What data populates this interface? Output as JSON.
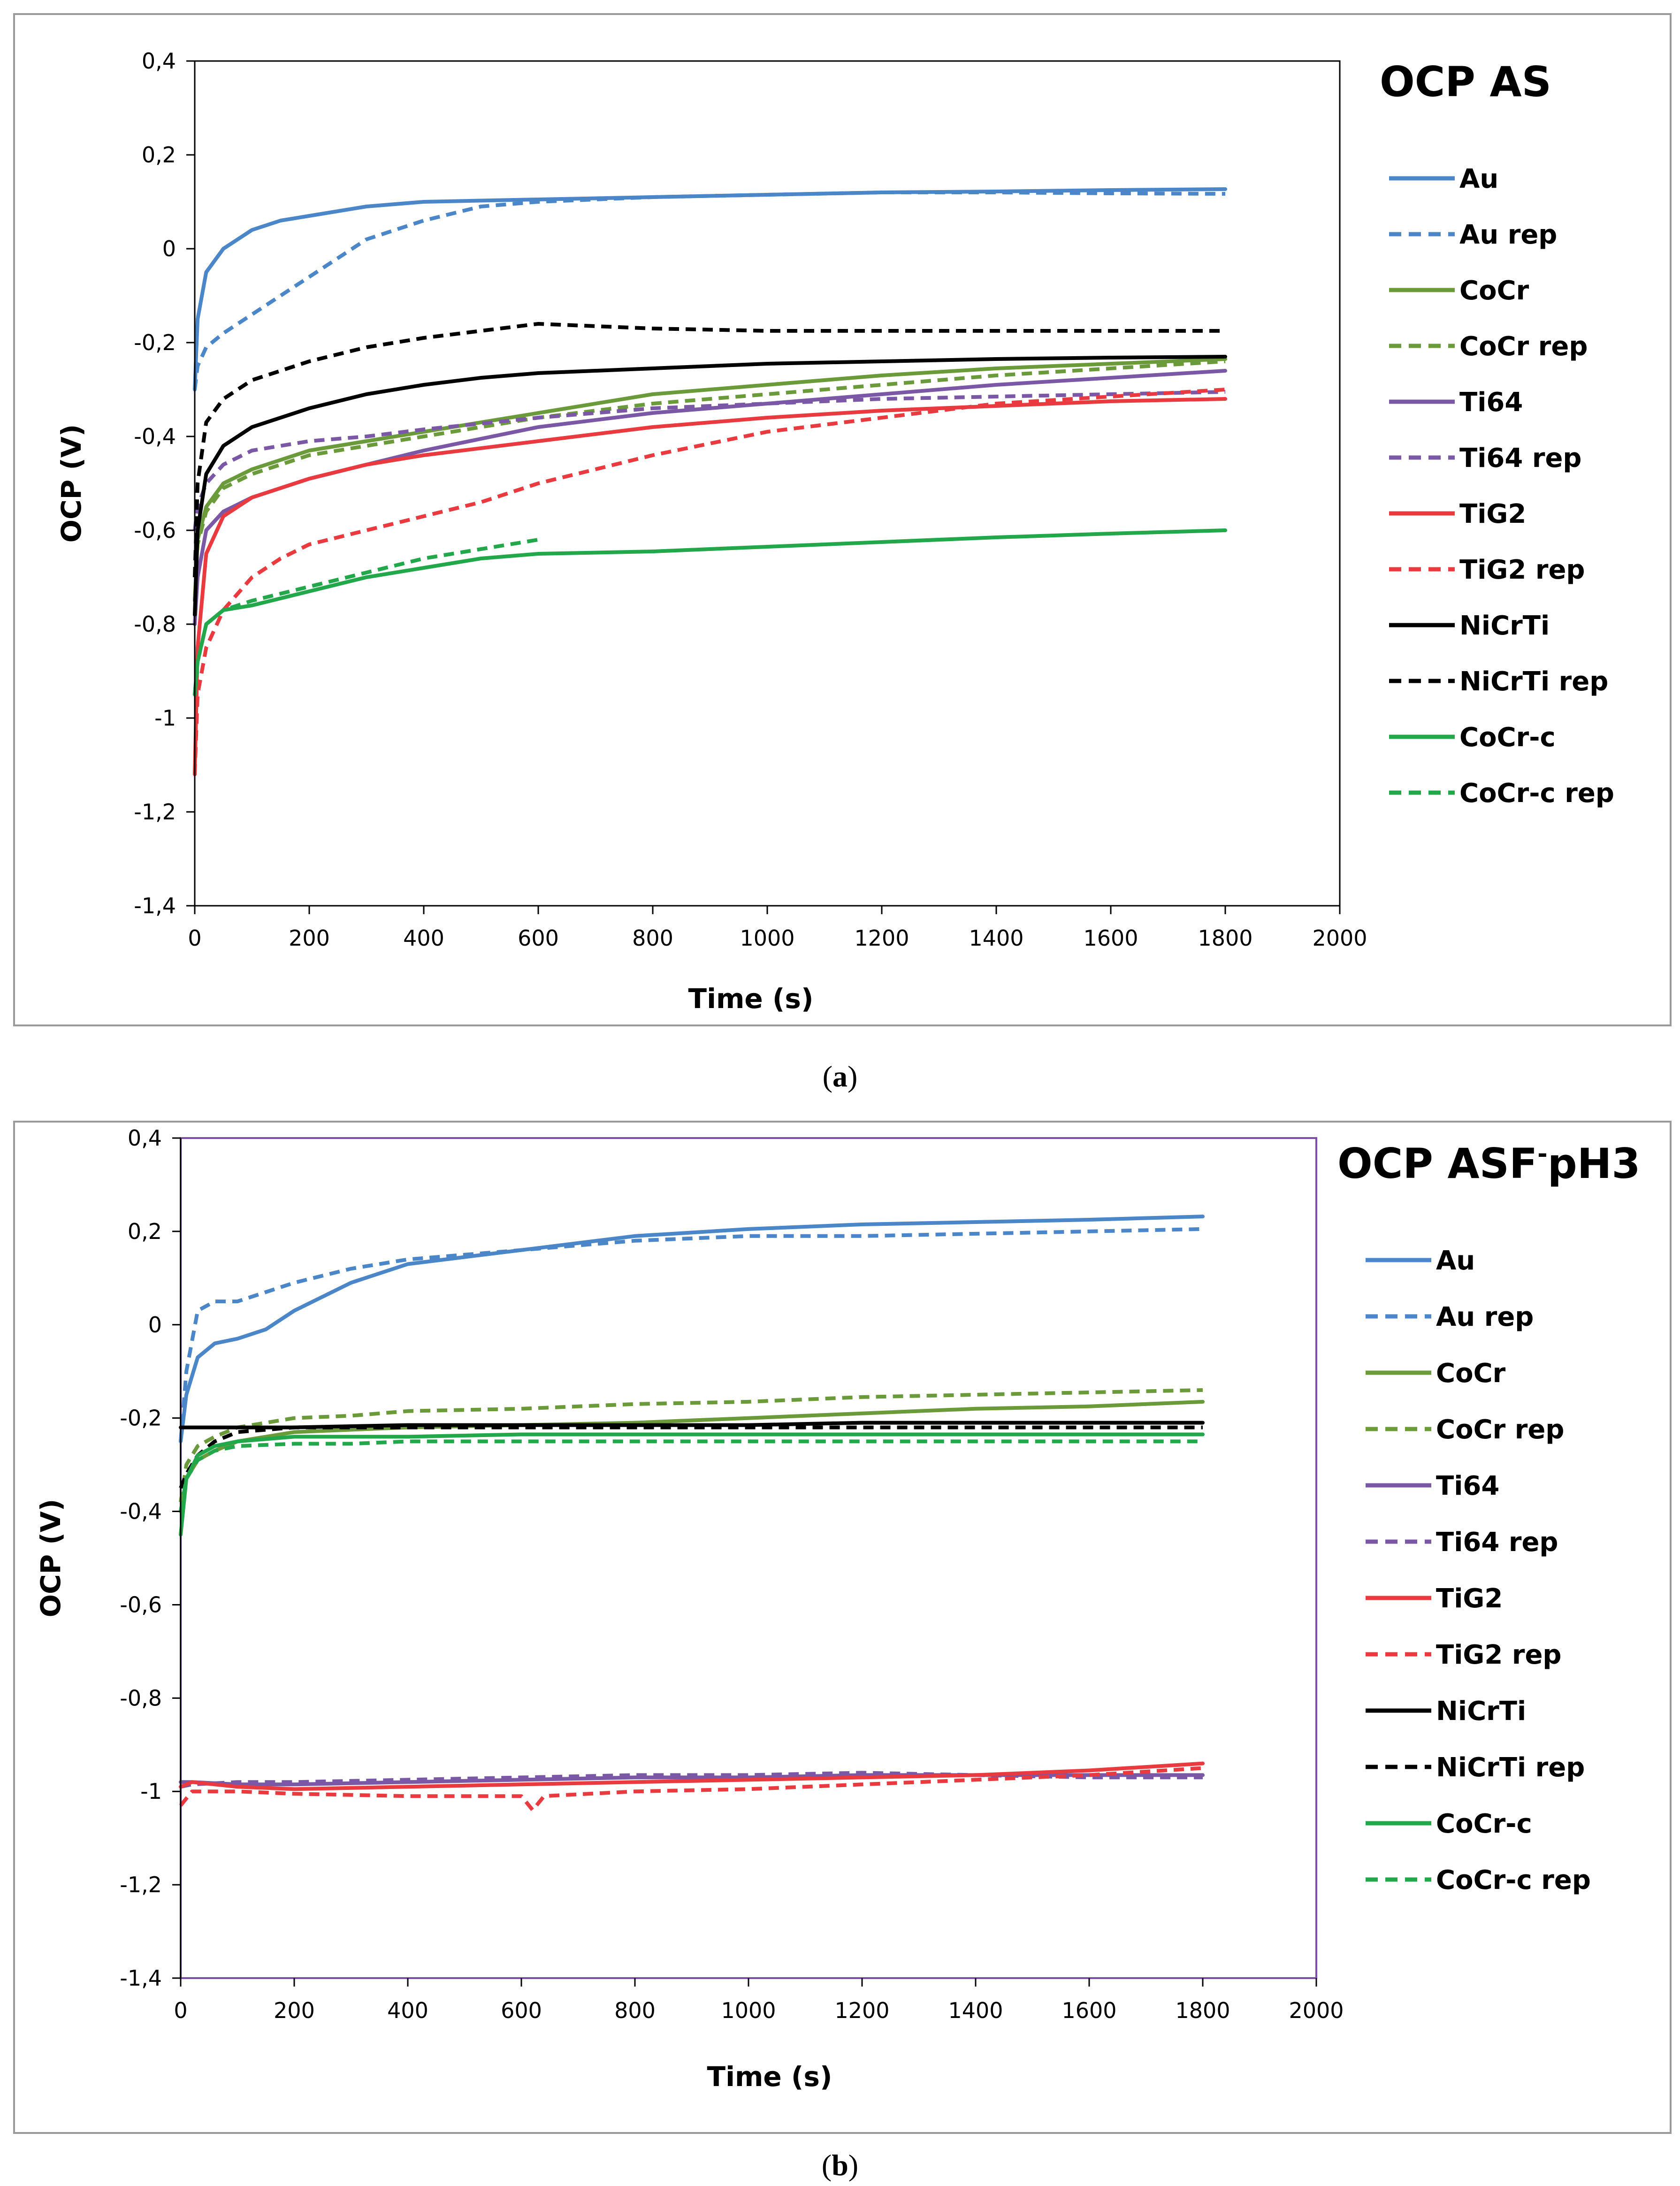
{
  "chart_data": [
    {
      "type": "line",
      "title": "OCP AS",
      "caption_letter": "a",
      "xlabel": "Time (s)",
      "ylabel": "OCP (V)",
      "xlim": [
        0,
        2000
      ],
      "ylim": [
        -1.4,
        0.4
      ],
      "x_ticks": [
        "0",
        "200",
        "400",
        "600",
        "800",
        "1000",
        "1200",
        "1400",
        "1600",
        "1800",
        "2000"
      ],
      "y_ticks": [
        "0,4",
        "0,2",
        "0",
        "-0,2",
        "-0,4",
        "-0,6",
        "-0,8",
        "-1",
        "-1,2",
        "-1,4"
      ],
      "legend_position": "right",
      "series": [
        {
          "name": "Au",
          "color": "#4a86c8",
          "dashed": false,
          "x": [
            0,
            5,
            20,
            50,
            100,
            150,
            200,
            300,
            400,
            600,
            800,
            1000,
            1200,
            1400,
            1600,
            1800
          ],
          "y": [
            -0.3,
            -0.15,
            -0.05,
            0.0,
            0.04,
            0.06,
            0.07,
            0.09,
            0.1,
            0.105,
            0.11,
            0.115,
            0.12,
            0.122,
            0.125,
            0.127
          ]
        },
        {
          "name": "Au rep",
          "color": "#4a86c8",
          "dashed": true,
          "x": [
            0,
            5,
            20,
            50,
            100,
            200,
            300,
            400,
            500,
            600,
            800,
            1000,
            1200,
            1400,
            1600,
            1800
          ],
          "y": [
            -0.3,
            -0.25,
            -0.21,
            -0.18,
            -0.14,
            -0.06,
            0.02,
            0.06,
            0.09,
            0.1,
            0.11,
            0.115,
            0.12,
            0.12,
            0.118,
            0.117
          ]
        },
        {
          "name": "CoCr",
          "color": "#6a9a3a",
          "dashed": false,
          "x": [
            0,
            5,
            20,
            50,
            100,
            200,
            300,
            400,
            600,
            800,
            1000,
            1200,
            1400,
            1600,
            1800
          ],
          "y": [
            -0.75,
            -0.62,
            -0.55,
            -0.5,
            -0.47,
            -0.43,
            -0.41,
            -0.39,
            -0.35,
            -0.31,
            -0.29,
            -0.27,
            -0.255,
            -0.245,
            -0.235
          ]
        },
        {
          "name": "CoCr rep",
          "color": "#6a9a3a",
          "dashed": true,
          "x": [
            0,
            5,
            20,
            50,
            100,
            200,
            300,
            400,
            600,
            800,
            1000,
            1200,
            1400,
            1600,
            1800
          ],
          "y": [
            -0.75,
            -0.63,
            -0.56,
            -0.51,
            -0.48,
            -0.44,
            -0.42,
            -0.4,
            -0.36,
            -0.33,
            -0.31,
            -0.29,
            -0.27,
            -0.255,
            -0.24
          ]
        },
        {
          "name": "Ti64",
          "color": "#7b58a6",
          "dashed": false,
          "x": [
            0,
            5,
            20,
            50,
            100,
            200,
            300,
            400,
            600,
            800,
            1000,
            1200,
            1400,
            1600,
            1800
          ],
          "y": [
            -0.8,
            -0.7,
            -0.6,
            -0.56,
            -0.53,
            -0.49,
            -0.46,
            -0.43,
            -0.38,
            -0.35,
            -0.33,
            -0.31,
            -0.29,
            -0.275,
            -0.26
          ]
        },
        {
          "name": "Ti64 rep",
          "color": "#7b58a6",
          "dashed": true,
          "x": [
            0,
            5,
            20,
            50,
            100,
            200,
            300,
            400,
            600,
            800,
            1000,
            1200,
            1400,
            1600,
            1800
          ],
          "y": [
            -0.6,
            -0.55,
            -0.5,
            -0.46,
            -0.43,
            -0.41,
            -0.4,
            -0.385,
            -0.36,
            -0.34,
            -0.33,
            -0.32,
            -0.315,
            -0.31,
            -0.305
          ]
        },
        {
          "name": "TiG2",
          "color": "#e83a3f",
          "dashed": false,
          "x": [
            0,
            5,
            20,
            50,
            100,
            200,
            300,
            400,
            600,
            800,
            1000,
            1200,
            1400,
            1600,
            1800
          ],
          "y": [
            -1.12,
            -0.85,
            -0.65,
            -0.57,
            -0.53,
            -0.49,
            -0.46,
            -0.44,
            -0.41,
            -0.38,
            -0.36,
            -0.345,
            -0.335,
            -0.325,
            -0.32
          ]
        },
        {
          "name": "TiG2 rep",
          "color": "#e83a3f",
          "dashed": true,
          "x": [
            0,
            5,
            20,
            50,
            100,
            150,
            200,
            300,
            400,
            500,
            600,
            800,
            1000,
            1200,
            1400,
            1600,
            1800
          ],
          "y": [
            -1.12,
            -0.95,
            -0.85,
            -0.77,
            -0.7,
            -0.66,
            -0.63,
            -0.6,
            -0.57,
            -0.54,
            -0.5,
            -0.44,
            -0.39,
            -0.36,
            -0.33,
            -0.315,
            -0.3
          ]
        },
        {
          "name": "NiCrTi",
          "color": "#000000",
          "dashed": false,
          "x": [
            0,
            5,
            20,
            50,
            100,
            200,
            300,
            400,
            500,
            600,
            800,
            1000,
            1200,
            1400,
            1600,
            1800
          ],
          "y": [
            -0.78,
            -0.6,
            -0.48,
            -0.42,
            -0.38,
            -0.34,
            -0.31,
            -0.29,
            -0.275,
            -0.265,
            -0.255,
            -0.245,
            -0.24,
            -0.235,
            -0.232,
            -0.23
          ]
        },
        {
          "name": "NiCrTi rep",
          "color": "#000000",
          "dashed": true,
          "x": [
            0,
            5,
            20,
            50,
            100,
            200,
            300,
            400,
            500,
            600,
            700,
            800,
            1000,
            1200,
            1400,
            1600,
            1800
          ],
          "y": [
            -0.7,
            -0.5,
            -0.37,
            -0.32,
            -0.28,
            -0.24,
            -0.21,
            -0.19,
            -0.175,
            -0.16,
            -0.165,
            -0.17,
            -0.175,
            -0.175,
            -0.175,
            -0.175,
            -0.175
          ]
        },
        {
          "name": "CoCr-c",
          "color": "#22a84a",
          "dashed": false,
          "x": [
            0,
            5,
            20,
            50,
            100,
            200,
            300,
            400,
            500,
            600,
            800,
            1000,
            1200,
            1400,
            1600,
            1800
          ],
          "y": [
            -0.95,
            -0.88,
            -0.8,
            -0.77,
            -0.76,
            -0.73,
            -0.7,
            -0.68,
            -0.66,
            -0.65,
            -0.645,
            -0.635,
            -0.625,
            -0.615,
            -0.607,
            -0.6
          ]
        },
        {
          "name": "CoCr-c rep",
          "color": "#22a84a",
          "dashed": true,
          "x": [
            0,
            5,
            20,
            50,
            100,
            200,
            300,
            400,
            500,
            600
          ],
          "y": [
            -0.95,
            -0.88,
            -0.8,
            -0.77,
            -0.75,
            -0.72,
            -0.69,
            -0.66,
            -0.64,
            -0.62
          ]
        }
      ]
    },
    {
      "type": "line",
      "title": "OCP ASF",
      "title_superscript": "-",
      "title_tail": "pH3",
      "caption_letter": "b",
      "xlabel": "Time (s)",
      "ylabel": "OCP (V)",
      "xlim": [
        0,
        2000
      ],
      "ylim": [
        -1.4,
        0.4
      ],
      "x_ticks": [
        "0",
        "200",
        "400",
        "600",
        "800",
        "1000",
        "1200",
        "1400",
        "1600",
        "1800",
        "2000"
      ],
      "y_ticks": [
        "0,4",
        "0,2",
        "0",
        "-0,2",
        "-0,4",
        "-0,6",
        "-0,8",
        "-1",
        "-1,2",
        "-1,4"
      ],
      "legend_position": "right",
      "series": [
        {
          "name": "Au",
          "color": "#4a86c8",
          "dashed": false,
          "x": [
            0,
            10,
            30,
            60,
            100,
            150,
            200,
            300,
            400,
            600,
            800,
            1000,
            1200,
            1400,
            1600,
            1800
          ],
          "y": [
            -0.25,
            -0.15,
            -0.07,
            -0.04,
            -0.03,
            -0.01,
            0.03,
            0.09,
            0.13,
            0.16,
            0.19,
            0.205,
            0.215,
            0.22,
            0.225,
            0.232
          ]
        },
        {
          "name": "Au rep",
          "color": "#4a86c8",
          "dashed": true,
          "x": [
            0,
            10,
            30,
            60,
            100,
            150,
            200,
            300,
            400,
            600,
            800,
            1000,
            1200,
            1400,
            1600,
            1800
          ],
          "y": [
            -0.25,
            -0.1,
            0.03,
            0.05,
            0.05,
            0.07,
            0.09,
            0.12,
            0.14,
            0.16,
            0.18,
            0.19,
            0.19,
            0.195,
            0.2,
            0.205
          ]
        },
        {
          "name": "CoCr",
          "color": "#6a9a3a",
          "dashed": false,
          "x": [
            0,
            10,
            30,
            60,
            100,
            200,
            300,
            400,
            600,
            800,
            1000,
            1200,
            1400,
            1600,
            1800
          ],
          "y": [
            -0.4,
            -0.33,
            -0.29,
            -0.27,
            -0.25,
            -0.23,
            -0.225,
            -0.22,
            -0.215,
            -0.21,
            -0.2,
            -0.19,
            -0.18,
            -0.175,
            -0.165
          ]
        },
        {
          "name": "CoCr rep",
          "color": "#6a9a3a",
          "dashed": true,
          "x": [
            0,
            10,
            30,
            60,
            100,
            200,
            300,
            400,
            600,
            800,
            1000,
            1200,
            1400,
            1600,
            1800
          ],
          "y": [
            -0.38,
            -0.3,
            -0.26,
            -0.24,
            -0.22,
            -0.2,
            -0.195,
            -0.185,
            -0.18,
            -0.17,
            -0.165,
            -0.155,
            -0.15,
            -0.145,
            -0.14
          ]
        },
        {
          "name": "Ti64",
          "color": "#7b58a6",
          "dashed": false,
          "x": [
            0,
            20,
            100,
            200,
            400,
            600,
            800,
            1000,
            1200,
            1400,
            1600,
            1800
          ],
          "y": [
            -0.98,
            -0.98,
            -0.985,
            -0.985,
            -0.98,
            -0.975,
            -0.97,
            -0.97,
            -0.965,
            -0.965,
            -0.965,
            -0.965
          ]
        },
        {
          "name": "Ti64 rep",
          "color": "#7b58a6",
          "dashed": true,
          "x": [
            0,
            20,
            100,
            200,
            400,
            600,
            800,
            1000,
            1200,
            1400,
            1600,
            1800
          ],
          "y": [
            -0.99,
            -0.985,
            -0.98,
            -0.98,
            -0.975,
            -0.97,
            -0.965,
            -0.965,
            -0.96,
            -0.965,
            -0.97,
            -0.97
          ]
        },
        {
          "name": "TiG2",
          "color": "#e83a3f",
          "dashed": false,
          "x": [
            0,
            20,
            100,
            200,
            400,
            600,
            800,
            1000,
            1200,
            1400,
            1600,
            1800
          ],
          "y": [
            -0.99,
            -0.98,
            -0.99,
            -0.995,
            -0.99,
            -0.985,
            -0.98,
            -0.975,
            -0.97,
            -0.965,
            -0.955,
            -0.94
          ]
        },
        {
          "name": "TiG2 rep",
          "color": "#e83a3f",
          "dashed": true,
          "x": [
            0,
            20,
            100,
            200,
            400,
            600,
            620,
            640,
            800,
            1000,
            1200,
            1400,
            1600,
            1800
          ],
          "y": [
            -1.03,
            -1.0,
            -1.0,
            -1.005,
            -1.01,
            -1.01,
            -1.04,
            -1.01,
            -1.0,
            -0.995,
            -0.985,
            -0.975,
            -0.965,
            -0.95
          ]
        },
        {
          "name": "NiCrTi",
          "color": "#000000",
          "dashed": false,
          "x": [
            0,
            50,
            100,
            200,
            400,
            600,
            800,
            1000,
            1200,
            1400,
            1600,
            1800
          ],
          "y": [
            -0.22,
            -0.22,
            -0.22,
            -0.22,
            -0.215,
            -0.215,
            -0.215,
            -0.215,
            -0.21,
            -0.21,
            -0.21,
            -0.21
          ]
        },
        {
          "name": "NiCrTi rep",
          "color": "#000000",
          "dashed": true,
          "x": [
            0,
            10,
            30,
            60,
            100,
            200,
            300,
            400,
            600,
            800,
            1000,
            1200,
            1400,
            1600,
            1800
          ],
          "y": [
            -0.35,
            -0.32,
            -0.28,
            -0.25,
            -0.23,
            -0.22,
            -0.22,
            -0.22,
            -0.22,
            -0.22,
            -0.22,
            -0.22,
            -0.22,
            -0.22,
            -0.22
          ]
        },
        {
          "name": "CoCr-c",
          "color": "#22a84a",
          "dashed": false,
          "x": [
            0,
            10,
            30,
            60,
            100,
            200,
            300,
            400,
            600,
            800,
            1000,
            1200,
            1400,
            1600,
            1800
          ],
          "y": [
            -0.45,
            -0.33,
            -0.28,
            -0.26,
            -0.25,
            -0.24,
            -0.24,
            -0.24,
            -0.235,
            -0.235,
            -0.235,
            -0.235,
            -0.235,
            -0.235,
            -0.235
          ]
        },
        {
          "name": "CoCr-c rep",
          "color": "#22a84a",
          "dashed": true,
          "x": [
            0,
            10,
            30,
            60,
            100,
            200,
            300,
            400,
            600,
            800,
            1000,
            1200,
            1400,
            1600,
            1800
          ],
          "y": [
            -0.4,
            -0.33,
            -0.29,
            -0.27,
            -0.26,
            -0.255,
            -0.255,
            -0.25,
            -0.25,
            -0.25,
            -0.25,
            -0.25,
            -0.25,
            -0.25,
            -0.25
          ]
        }
      ]
    }
  ]
}
